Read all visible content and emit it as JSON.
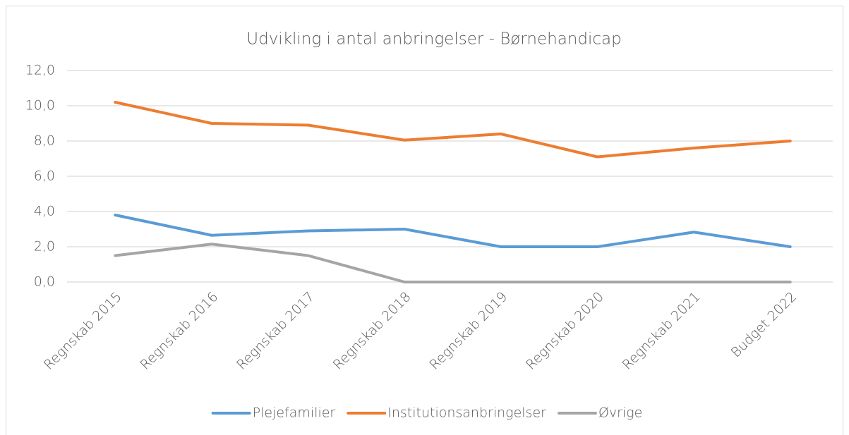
{
  "chart_data": {
    "type": "line",
    "title": "Udvikling i antal anbringelser - Børnehandicap",
    "categories": [
      "Regnskab 2015",
      "Regnskab 2016",
      "Regnskab 2017",
      "Regnskab 2018",
      "Regnskab 2019",
      "Regnskab 2020",
      "Regnskab 2021",
      "Budget 2022"
    ],
    "series": [
      {
        "name": "Plejefamilier",
        "color": "#5b9bd5",
        "values": [
          3.8,
          2.65,
          2.9,
          3.0,
          2.0,
          2.0,
          2.83,
          2.0
        ]
      },
      {
        "name": "Institutionsanbringelser",
        "color": "#ed7d31",
        "values": [
          10.2,
          9.0,
          8.9,
          8.05,
          8.4,
          7.1,
          7.6,
          8.0
        ]
      },
      {
        "name": "Øvrige",
        "color": "#a5a5a5",
        "values": [
          1.5,
          2.15,
          1.5,
          0,
          0,
          0,
          0,
          0
        ]
      }
    ],
    "ylim": [
      0,
      12
    ],
    "yticks": [
      {
        "value": 0,
        "label": "0,0"
      },
      {
        "value": 2,
        "label": "2,0"
      },
      {
        "value": 4,
        "label": "4,0"
      },
      {
        "value": 6,
        "label": "6,0"
      },
      {
        "value": 8,
        "label": "8,0"
      },
      {
        "value": 10,
        "label": "10,0"
      },
      {
        "value": 12,
        "label": "12,0"
      }
    ],
    "grid": true,
    "legend": "bottom"
  }
}
